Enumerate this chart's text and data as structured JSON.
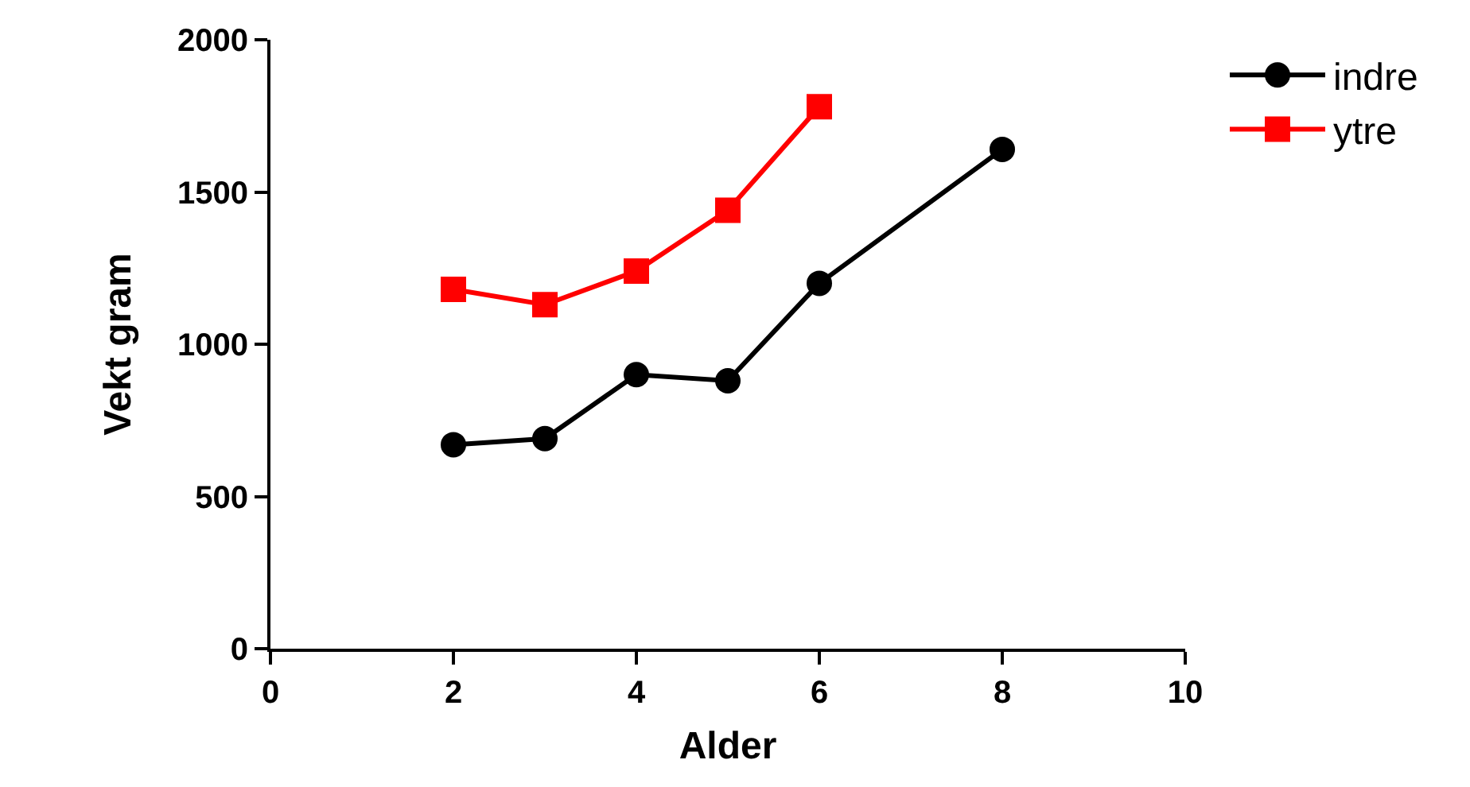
{
  "chart_data": {
    "type": "line",
    "xlabel": "Alder",
    "ylabel": "Vekt gram",
    "xlim": [
      0,
      10
    ],
    "xticks": [
      0,
      2,
      4,
      6,
      8,
      10
    ],
    "ylim": [
      0,
      2000
    ],
    "yticks": [
      0,
      500,
      1000,
      1500,
      2000
    ],
    "grid": false,
    "legend": "top right",
    "line_style": "solid",
    "series": [
      {
        "name": "indre",
        "color": "#000000",
        "marker": "circle",
        "x": [
          2,
          3,
          4,
          5,
          6,
          8
        ],
        "values": [
          670,
          690,
          900,
          880,
          1200,
          1640
        ]
      },
      {
        "name": "ytre",
        "color": "#ff0000",
        "marker": "square",
        "x": [
          2,
          3,
          4,
          5,
          6
        ],
        "values": [
          1180,
          1130,
          1240,
          1440,
          1780
        ]
      }
    ]
  }
}
